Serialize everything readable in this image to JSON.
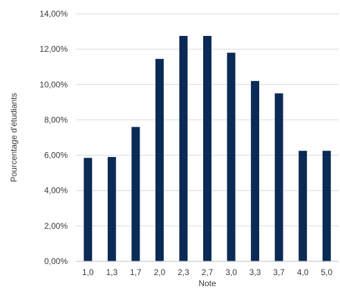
{
  "chart_data": {
    "type": "bar",
    "categories": [
      "1,0",
      "1,3",
      "1,7",
      "2,0",
      "2,3",
      "2,7",
      "3,0",
      "3,3",
      "3,7",
      "4,0",
      "5,0"
    ],
    "values": [
      5.85,
      5.9,
      7.6,
      11.45,
      12.75,
      12.75,
      11.8,
      10.2,
      9.5,
      6.25,
      6.25
    ],
    "title": "",
    "xlabel": "Note",
    "ylabel": "Pourcentage d'étudiants",
    "ylim": [
      0,
      14
    ],
    "yticks": [
      "0,00%",
      "2,00%",
      "4,00%",
      "6,00%",
      "8,00%",
      "10,00%",
      "12,00%",
      "14,00%"
    ],
    "grid": true,
    "bar_color": "#0b2a55"
  }
}
